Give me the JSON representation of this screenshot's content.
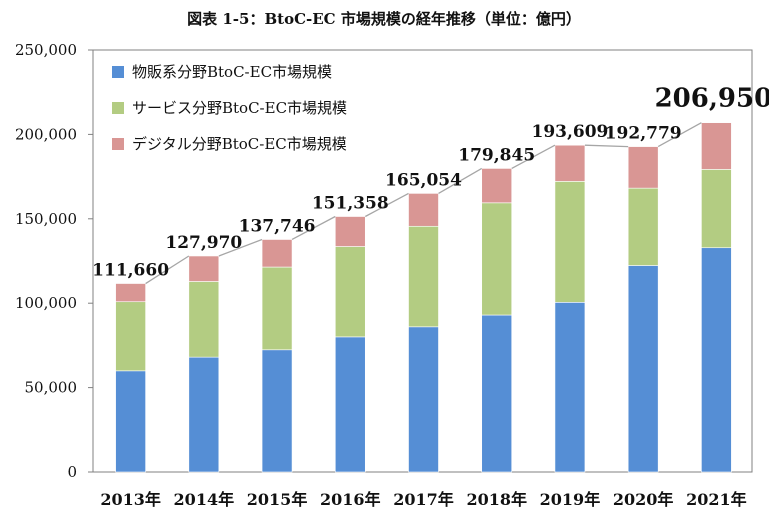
{
  "title": "図表 1-5：BtoC-EC 市場規模の経年推移（単位：億円）",
  "chart_data": {
    "type": "bar",
    "stacked": true,
    "title": "図表 1-5：BtoC-EC 市場規模の経年推移（単位：億円）",
    "categories": [
      "2013年",
      "2014年",
      "2015年",
      "2016年",
      "2017年",
      "2018年",
      "2019年",
      "2020年",
      "2021年"
    ],
    "series": [
      {
        "name": "物販系分野BtoC-EC市場規模",
        "color": "#558ed5",
        "values": [
          59931,
          68043,
          72398,
          80043,
          86008,
          92992,
          100515,
          122333,
          132865
        ]
      },
      {
        "name": "サービス分野BtoC-EC市場規模",
        "color": "#b3cc82",
        "values": [
          40944,
          44816,
          49014,
          53532,
          59568,
          66471,
          71672,
          45832,
          46424
        ]
      },
      {
        "name": "デジタル分野BtoC-EC市場規模",
        "color": "#d99694",
        "values": [
          10785,
          15111,
          16334,
          17782,
          19478,
          20382,
          21422,
          24614,
          27661
        ]
      }
    ],
    "totals": [
      111660,
      127970,
      137746,
      151358,
      165054,
      179845,
      193609,
      192779,
      206950
    ],
    "total_labels": [
      "111,660",
      "127,970",
      "137,746",
      "151,358",
      "165,054",
      "179,845",
      "193,609",
      "192,779",
      "206,950"
    ],
    "ylim": [
      0,
      250000
    ],
    "yticks": [
      0,
      50000,
      100000,
      150000,
      200000,
      250000
    ],
    "ytick_labels": [
      "0",
      "50,000",
      "100,000",
      "150,000",
      "200,000",
      "250,000"
    ],
    "xlabel": "",
    "ylabel": "",
    "legend_position": "top-left",
    "grid": false,
    "line_color": "#a6a6a6",
    "axis_color": "#808080"
  }
}
